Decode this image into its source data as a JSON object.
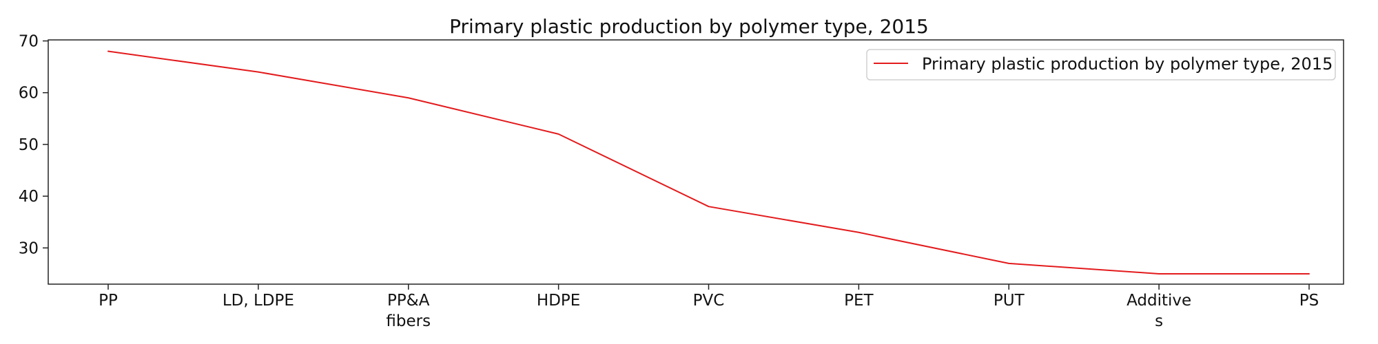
{
  "chart_data": {
    "type": "line",
    "title": "Primary plastic production by polymer type, 2015",
    "xlabel": "",
    "ylabel": "",
    "categories": [
      "PP",
      "LD, LDPE",
      "PP&A fibers",
      "HDPE",
      "PVC",
      "PET",
      "PUT",
      "Additives",
      "PS"
    ],
    "category_labels": [
      [
        "PP"
      ],
      [
        "LD, LDPE"
      ],
      [
        "PP&A",
        "fibers"
      ],
      [
        "HDPE"
      ],
      [
        "PVC"
      ],
      [
        "PET"
      ],
      [
        "PUT"
      ],
      [
        "Additive",
        "s"
      ],
      [
        "PS"
      ]
    ],
    "series": [
      {
        "name": "Primary plastic production by polymer type, 2015",
        "values": [
          68,
          64,
          59,
          52,
          38,
          33,
          27,
          25,
          25
        ],
        "color": "#e31a1c"
      }
    ],
    "ylim": [
      23.0,
      70.2
    ],
    "yticks": [
      30,
      40,
      50,
      60,
      70
    ],
    "grid": false,
    "legend": {
      "position": "top-right",
      "label": "Primary plastic production by polymer type, 2015"
    }
  }
}
